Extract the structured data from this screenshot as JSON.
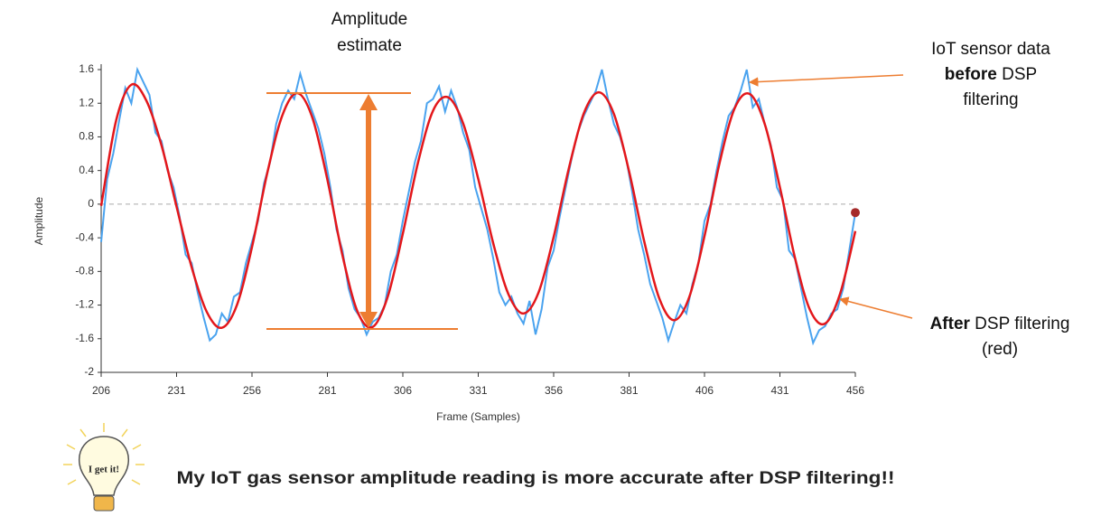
{
  "chart_data": {
    "type": "line",
    "x_label": "Frame (Samples)",
    "y_label": "Amplitude",
    "xlim": [
      206,
      456
    ],
    "ylim": [
      -2,
      1.6
    ],
    "xticks": [
      206,
      231,
      256,
      281,
      306,
      331,
      356,
      381,
      406,
      431,
      456
    ],
    "yticks": [
      -2,
      -1.6,
      -1.2,
      -0.8,
      -0.4,
      0,
      0.4,
      0.8,
      1.2,
      1.6
    ],
    "zero_line": true,
    "series": [
      {
        "color": "#4aa3ef",
        "end_marker_color": "#a52a2a",
        "x": [
          206,
          208,
          210,
          212,
          214,
          216,
          218,
          220,
          222,
          224,
          226,
          228,
          230,
          232,
          234,
          236,
          238,
          240,
          242,
          244,
          246,
          248,
          250,
          252,
          254,
          256,
          258,
          260,
          262,
          264,
          266,
          268,
          270,
          272,
          274,
          276,
          278,
          280,
          282,
          284,
          286,
          288,
          290,
          292,
          294,
          296,
          298,
          300,
          302,
          304,
          306,
          308,
          310,
          312,
          314,
          316,
          318,
          320,
          322,
          324,
          326,
          328,
          330,
          332,
          334,
          336,
          338,
          340,
          342,
          344,
          346,
          348,
          350,
          352,
          354,
          356,
          358,
          360,
          362,
          364,
          366,
          368,
          370,
          372,
          374,
          376,
          378,
          380,
          382,
          384,
          386,
          388,
          390,
          392,
          394,
          396,
          398,
          400,
          402,
          404,
          406,
          408,
          410,
          412,
          414,
          416,
          418,
          420,
          422,
          424,
          426,
          428,
          430,
          432,
          434,
          436,
          438,
          440,
          442,
          444,
          446,
          448,
          450,
          452,
          454,
          456
        ],
        "values": [
          -0.45,
          0.3,
          0.6,
          1.0,
          1.38,
          1.2,
          1.6,
          1.45,
          1.3,
          0.85,
          0.75,
          0.4,
          0.2,
          -0.15,
          -0.6,
          -0.7,
          -1.05,
          -1.35,
          -1.62,
          -1.55,
          -1.3,
          -1.4,
          -1.1,
          -1.05,
          -0.7,
          -0.45,
          -0.2,
          0.25,
          0.5,
          0.95,
          1.2,
          1.35,
          1.25,
          1.55,
          1.3,
          1.1,
          0.9,
          0.6,
          0.2,
          -0.3,
          -0.55,
          -1.0,
          -1.25,
          -1.35,
          -1.55,
          -1.4,
          -1.35,
          -1.2,
          -0.8,
          -0.6,
          -0.2,
          0.15,
          0.5,
          0.75,
          1.2,
          1.25,
          1.4,
          1.1,
          1.35,
          1.15,
          0.85,
          0.65,
          0.2,
          -0.05,
          -0.3,
          -0.65,
          -1.05,
          -1.2,
          -1.1,
          -1.3,
          -1.42,
          -1.15,
          -1.55,
          -1.25,
          -0.75,
          -0.55,
          -0.15,
          0.2,
          0.55,
          0.85,
          1.05,
          1.2,
          1.35,
          1.6,
          1.25,
          0.95,
          0.8,
          0.55,
          0.15,
          -0.3,
          -0.6,
          -0.95,
          -1.15,
          -1.35,
          -1.62,
          -1.4,
          -1.2,
          -1.3,
          -0.95,
          -0.7,
          -0.2,
          0.0,
          0.4,
          0.75,
          1.05,
          1.15,
          1.35,
          1.6,
          1.15,
          1.25,
          0.95,
          0.7,
          0.2,
          0.05,
          -0.55,
          -0.65,
          -1.0,
          -1.35,
          -1.65,
          -1.5,
          -1.45,
          -1.3,
          -1.25,
          -1.0,
          -0.55,
          -0.1
        ]
      },
      {
        "color": "#e3171b",
        "smooth": true,
        "x": [
          206,
          211,
          216,
          221,
          226,
          231,
          236,
          241,
          246,
          251,
          256,
          261,
          266,
          271,
          276,
          281,
          286,
          291,
          296,
          301,
          306,
          311,
          316,
          321,
          326,
          331,
          336,
          341,
          346,
          351,
          356,
          361,
          366,
          371,
          376,
          381,
          386,
          391,
          396,
          401,
          406,
          411,
          416,
          421,
          426,
          431,
          436,
          441,
          446,
          451,
          456
        ],
        "values": [
          -0.02,
          1.0,
          1.42,
          1.23,
          0.7,
          -0.03,
          -0.75,
          -1.28,
          -1.47,
          -1.2,
          -0.51,
          0.36,
          1.05,
          1.32,
          1.03,
          0.29,
          -0.61,
          -1.28,
          -1.46,
          -1.1,
          -0.35,
          0.49,
          1.11,
          1.27,
          0.96,
          0.3,
          -0.47,
          -1.07,
          -1.3,
          -1.05,
          -0.39,
          0.42,
          1.08,
          1.33,
          1.07,
          0.39,
          -0.44,
          -1.12,
          -1.38,
          -1.1,
          -0.38,
          0.49,
          1.14,
          1.31,
          0.95,
          0.2,
          -0.64,
          -1.26,
          -1.42,
          -1.06,
          -0.32
        ]
      }
    ]
  },
  "annotations": {
    "amplitude": [
      "Amplitude",
      "estimate"
    ],
    "before": {
      "line1": "IoT sensor data",
      "bold": "before",
      "rest": " DSP",
      "line3": "filtering"
    },
    "after": {
      "bold": "After",
      "rest": " DSP filtering",
      "line2": "(red)"
    }
  },
  "badge": "I get it!",
  "caption": "My IoT gas sensor amplitude reading is more accurate after DSP filtering!!"
}
